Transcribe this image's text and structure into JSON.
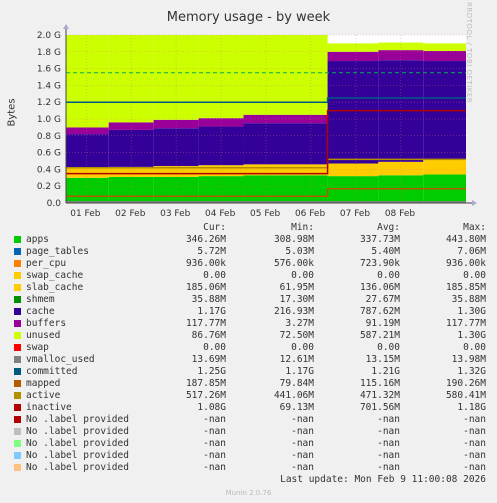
{
  "chart_data": {
    "type": "area",
    "title": "Memory usage - by week",
    "ylabel": "Bytes",
    "side_credit": "RRDTOOL / TOBI OETIKER",
    "ylim": [
      0,
      2.0
    ],
    "y_unit": "G",
    "y_ticks": [
      "0.0",
      "0.2 G",
      "0.4 G",
      "0.6 G",
      "0.8 G",
      "1.0 G",
      "1.2 G",
      "1.4 G",
      "1.6 G",
      "1.8 G",
      "2.0 G"
    ],
    "x_ticks": [
      "01 Feb",
      "02 Feb",
      "03 Feb",
      "04 Feb",
      "05 Feb",
      "06 Feb",
      "07 Feb",
      "08 Feb"
    ],
    "x_range_days": [
      31.55,
      40.45
    ],
    "grid": true,
    "stacked": true,
    "step_day": 37.37,
    "segments": [
      {
        "from": 31.55,
        "to": 32.5,
        "apps": 0.3,
        "slab_cache": 0.12,
        "cache": 0.4,
        "buffers": 0.08,
        "unused": 1.1
      },
      {
        "from": 32.5,
        "to": 33.5,
        "apps": 0.31,
        "slab_cache": 0.12,
        "cache": 0.44,
        "buffers": 0.09,
        "unused": 1.04
      },
      {
        "from": 33.5,
        "to": 34.5,
        "apps": 0.31,
        "slab_cache": 0.13,
        "cache": 0.45,
        "buffers": 0.1,
        "unused": 1.01
      },
      {
        "from": 34.5,
        "to": 35.5,
        "apps": 0.32,
        "slab_cache": 0.13,
        "cache": 0.46,
        "buffers": 0.1,
        "unused": 0.99
      },
      {
        "from": 35.5,
        "to": 37.37,
        "apps": 0.33,
        "slab_cache": 0.13,
        "cache": 0.49,
        "buffers": 0.1,
        "unused": 0.95
      },
      {
        "from": 37.37,
        "to": 38.5,
        "apps": 0.32,
        "slab_cache": 0.15,
        "cache": 1.22,
        "buffers": 0.11,
        "unused": 0.1
      },
      {
        "from": 38.5,
        "to": 39.5,
        "apps": 0.33,
        "slab_cache": 0.16,
        "cache": 1.21,
        "buffers": 0.12,
        "unused": 0.09
      },
      {
        "from": 39.5,
        "to": 40.45,
        "apps": 0.34,
        "slab_cache": 0.18,
        "cache": 1.17,
        "buffers": 0.12,
        "unused": 0.09
      }
    ],
    "lines": [
      {
        "name": "committed",
        "before": 1.2,
        "after": 1.25
      },
      {
        "name": "active",
        "before": 0.42,
        "after": 0.52
      },
      {
        "name": "inactive",
        "before": 0.35,
        "after": 1.1
      },
      {
        "name": "mapped",
        "before": 0.08,
        "after": 0.17
      },
      {
        "name": "vmalloc_used",
        "before": 0.014,
        "after": 0.014
      },
      {
        "name": "limit",
        "before": 1.55,
        "after": 1.55
      }
    ]
  },
  "legend": {
    "headers": [
      "Cur:",
      "Min:",
      "Avg:",
      "Max:"
    ],
    "rows": [
      {
        "name": "apps",
        "color": "#00cc00",
        "values": [
          "346.26M",
          "308.98M",
          "337.73M",
          "443.80M"
        ]
      },
      {
        "name": "page_tables",
        "color": "#0066b3",
        "values": [
          "5.72M",
          "5.03M",
          "5.40M",
          "7.06M"
        ]
      },
      {
        "name": "per_cpu",
        "color": "#ff8000",
        "values": [
          "936.00k",
          "576.00k",
          "723.90k",
          "936.00k"
        ]
      },
      {
        "name": "swap_cache",
        "color": "#ffcc00",
        "values": [
          "0.00",
          "0.00",
          "0.00",
          "0.00"
        ]
      },
      {
        "name": "slab_cache",
        "color": "#ffcc00",
        "values": [
          "185.06M",
          "61.95M",
          "136.06M",
          "185.85M"
        ]
      },
      {
        "name": "shmem",
        "color": "#008f00",
        "values": [
          "35.88M",
          "17.30M",
          "27.67M",
          "35.88M"
        ]
      },
      {
        "name": "cache",
        "color": "#330099",
        "values": [
          "1.17G",
          "216.93M",
          "787.62M",
          "1.30G"
        ]
      },
      {
        "name": "buffers",
        "color": "#990099",
        "values": [
          "117.77M",
          "3.27M",
          "91.19M",
          "117.77M"
        ]
      },
      {
        "name": "unused",
        "color": "#ccff00",
        "values": [
          "86.76M",
          "72.50M",
          "587.21M",
          "1.30G"
        ]
      },
      {
        "name": "swap",
        "color": "#ff0000",
        "values": [
          "0.00",
          "0.00",
          "0.00",
          "0.00"
        ]
      },
      {
        "name": "vmalloc_used",
        "color": "#808080",
        "values": [
          "13.69M",
          "12.61M",
          "13.15M",
          "13.98M"
        ]
      },
      {
        "name": "committed",
        "color": "#005a80",
        "values": [
          "1.25G",
          "1.17G",
          "1.21G",
          "1.32G"
        ]
      },
      {
        "name": "mapped",
        "color": "#b35a00",
        "values": [
          "187.85M",
          "79.84M",
          "115.16M",
          "190.26M"
        ]
      },
      {
        "name": "active",
        "color": "#b38f00",
        "values": [
          "517.26M",
          "441.06M",
          "471.32M",
          "580.41M"
        ]
      },
      {
        "name": "inactive",
        "color": "#b30000",
        "values": [
          "1.08G",
          "69.13M",
          "701.56M",
          "1.18G"
        ]
      },
      {
        "name": "No .label provided",
        "color": "#b30000",
        "values": [
          "-nan",
          "-nan",
          "-nan",
          "-nan"
        ]
      },
      {
        "name": "No .label provided",
        "color": "#bebebe",
        "values": [
          "-nan",
          "-nan",
          "-nan",
          "-nan"
        ]
      },
      {
        "name": "No .label provided",
        "color": "#80ff80",
        "values": [
          "-nan",
          "-nan",
          "-nan",
          "-nan"
        ]
      },
      {
        "name": "No .label provided",
        "color": "#80c9ff",
        "values": [
          "-nan",
          "-nan",
          "-nan",
          "-nan"
        ]
      },
      {
        "name": "No .label provided",
        "color": "#ffc080",
        "values": [
          "-nan",
          "-nan",
          "-nan",
          "-nan"
        ]
      }
    ]
  },
  "footer": {
    "last_update": "Last update: Mon Feb  9 11:00:08 2026",
    "munin": "Munin 2.0.76"
  }
}
